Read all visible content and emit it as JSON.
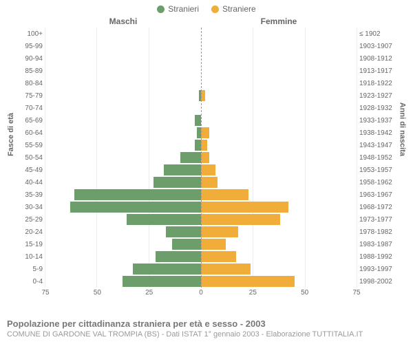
{
  "legend": {
    "male": "Stranieri",
    "female": "Straniere"
  },
  "colors": {
    "male": "#6b9e6b",
    "female": "#f0ad3a",
    "text": "#666666",
    "grid": "#ececec",
    "zero_line": "#999999",
    "background": "#ffffff"
  },
  "column_titles": {
    "left": "Maschi",
    "right": "Femmine"
  },
  "y_axis_left_label": "Fasce di età",
  "y_axis_right_label": "Anni di nascita",
  "x_axis": {
    "max": 75,
    "ticks": [
      0,
      25,
      50,
      75
    ]
  },
  "rows": [
    {
      "age": "100+",
      "year": "≤ 1902",
      "male": 0,
      "female": 0
    },
    {
      "age": "95-99",
      "year": "1903-1907",
      "male": 0,
      "female": 0
    },
    {
      "age": "90-94",
      "year": "1908-1912",
      "male": 0,
      "female": 0
    },
    {
      "age": "85-89",
      "year": "1913-1917",
      "male": 0,
      "female": 0
    },
    {
      "age": "80-84",
      "year": "1918-1922",
      "male": 0,
      "female": 0
    },
    {
      "age": "75-79",
      "year": "1923-1927",
      "male": 1,
      "female": 2
    },
    {
      "age": "70-74",
      "year": "1928-1932",
      "male": 0,
      "female": 0
    },
    {
      "age": "65-69",
      "year": "1933-1937",
      "male": 3,
      "female": 0
    },
    {
      "age": "60-64",
      "year": "1938-1942",
      "male": 2,
      "female": 4
    },
    {
      "age": "55-59",
      "year": "1943-1947",
      "male": 3,
      "female": 3
    },
    {
      "age": "50-54",
      "year": "1948-1952",
      "male": 10,
      "female": 4
    },
    {
      "age": "45-49",
      "year": "1953-1957",
      "male": 18,
      "female": 7
    },
    {
      "age": "40-44",
      "year": "1958-1962",
      "male": 23,
      "female": 8
    },
    {
      "age": "35-39",
      "year": "1963-1967",
      "male": 61,
      "female": 23
    },
    {
      "age": "30-34",
      "year": "1968-1972",
      "male": 63,
      "female": 42
    },
    {
      "age": "25-29",
      "year": "1973-1977",
      "male": 36,
      "female": 38
    },
    {
      "age": "20-24",
      "year": "1978-1982",
      "male": 17,
      "female": 18
    },
    {
      "age": "15-19",
      "year": "1983-1987",
      "male": 14,
      "female": 12
    },
    {
      "age": "10-14",
      "year": "1988-1992",
      "male": 22,
      "female": 17
    },
    {
      "age": "5-9",
      "year": "1993-1997",
      "male": 33,
      "female": 24
    },
    {
      "age": "0-4",
      "year": "1998-2002",
      "male": 38,
      "female": 45
    }
  ],
  "caption": {
    "title": "Popolazione per cittadinanza straniera per età e sesso - 2003",
    "subtitle": "COMUNE DI GARDONE VAL TROMPIA (BS) - Dati ISTAT 1° gennaio 2003 - Elaborazione TUTTITALIA.IT"
  }
}
